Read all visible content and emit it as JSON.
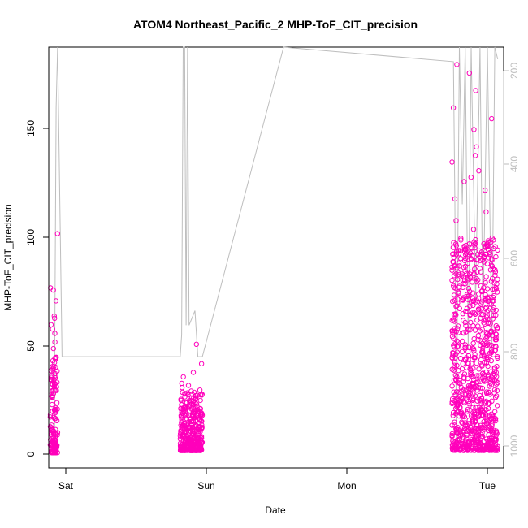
{
  "chart_data": {
    "type": "scatter",
    "title": "ATOM4 Northeast_Pacific_2 MHP-ToF_CIT_precision",
    "xlabel": "Date",
    "ylabel": "MHP-ToF_CIT_precision",
    "x_ticks": [
      "Sat",
      "Sun",
      "Mon",
      "Tue"
    ],
    "y_ticks": [
      "0",
      "50",
      "100",
      "150"
    ],
    "y2_ticks": [
      "200",
      "400",
      "600",
      "800",
      "1000"
    ],
    "ylim": [
      -6,
      188
    ],
    "y2lim": [
      1045,
      175
    ],
    "y2_reversed": true,
    "xlim_days": [
      -0.04,
      3.04
    ],
    "grid": false,
    "series": [
      {
        "color": "#ff00bb",
        "marker": "circle-open",
        "clusters": [
          {
            "x_start": -0.03,
            "x_end": 0.02,
            "y_typical_min": 1,
            "y_typical_max": 45,
            "y_outliers": [
              45,
              49,
              52,
              56,
              58,
              60,
              63,
              64,
              71,
              76,
              77,
              102
            ]
          },
          {
            "x_start": 0.85,
            "x_end": 1.0,
            "y_typical_min": 2,
            "y_typical_max": 30,
            "y_outliers": [
              31,
              32,
              33,
              36,
              38,
              42,
              51
            ]
          },
          {
            "x_start": 2.69,
            "x_end": 3.0,
            "y_typical_min": 2,
            "y_typical_max": 100,
            "y_outliers": [
              104,
              108,
              112,
              118,
              122,
              126,
              128,
              131,
              135,
              138,
              142,
              150,
              155,
              160,
              168,
              176,
              180
            ]
          }
        ]
      },
      {
        "color": "#bebebe",
        "type": "line",
        "axis": "right",
        "description_points": [
          [
            0.0,
            1000
          ],
          [
            0.0,
            830
          ],
          [
            0.01,
            300
          ],
          [
            0.02,
            175
          ],
          [
            0.05,
            815
          ],
          [
            0.85,
            815
          ],
          [
            0.86,
            770
          ],
          [
            0.87,
            175
          ],
          [
            0.88,
            175
          ],
          [
            0.89,
            750
          ],
          [
            0.9,
            175
          ],
          [
            0.91,
            750
          ],
          [
            0.95,
            720
          ],
          [
            0.97,
            815
          ],
          [
            1.0,
            815
          ],
          [
            1.55,
            175
          ],
          [
            2.7,
            205
          ],
          [
            2.71,
            500
          ],
          [
            2.72,
            1000
          ],
          [
            2.74,
            175
          ],
          [
            2.76,
            500
          ],
          [
            2.78,
            175
          ],
          [
            2.8,
            800
          ],
          [
            2.82,
            175
          ],
          [
            2.85,
            700
          ],
          [
            2.88,
            175
          ],
          [
            2.9,
            750
          ],
          [
            2.93,
            175
          ],
          [
            2.96,
            800
          ],
          [
            2.98,
            175
          ],
          [
            3.0,
            200
          ]
        ]
      }
    ]
  }
}
